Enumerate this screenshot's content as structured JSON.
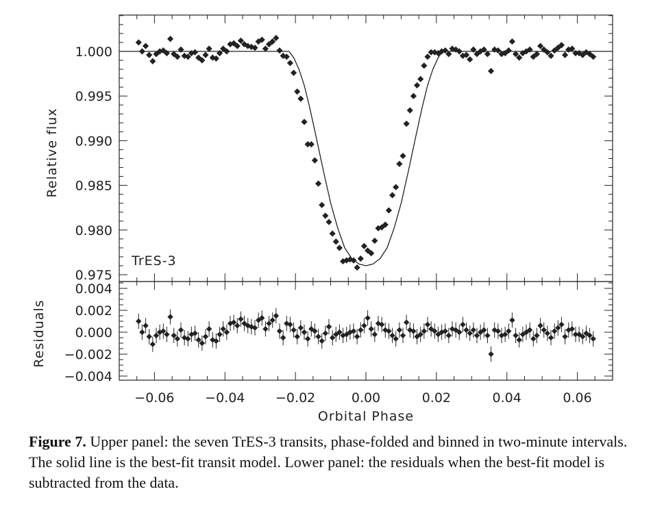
{
  "figure": {
    "caption_label": "Figure 7.",
    "caption_text": " Upper panel: the seven TrES-3 transits, phase-folded and binned in two-minute intervals. The solid line is the best-fit transit model. Lower panel: the residuals when the best-fit model is subtracted from the data."
  },
  "colors": {
    "ink": "#222222",
    "background": "#ffffff"
  },
  "chart_data": [
    {
      "type": "scatter",
      "panel": "upper",
      "annotation": "TrES-3",
      "xlabel": "",
      "ylabel": "Relative flux",
      "xlim": [
        -0.07,
        0.07
      ],
      "ylim": [
        0.975,
        1.0045
      ],
      "x_ticks": [
        -0.06,
        -0.04,
        -0.02,
        0.0,
        0.02,
        0.04,
        0.06
      ],
      "y_ticks": [
        1.0,
        0.995,
        0.99,
        0.985,
        0.98,
        0.975
      ],
      "y_tick_labels": [
        "1.000",
        "0.995",
        "0.990",
        "0.985",
        "0.980",
        "0.975"
      ],
      "model": {
        "type": "line",
        "x": [
          -0.07,
          -0.0218,
          -0.0205,
          -0.019,
          -0.0175,
          -0.016,
          -0.014,
          -0.012,
          -0.01,
          -0.008,
          -0.006,
          -0.004,
          -0.002,
          0.0,
          0.002,
          0.004,
          0.006,
          0.008,
          0.01,
          0.012,
          0.014,
          0.016,
          0.0175,
          0.019,
          0.0205,
          0.0218,
          0.07
        ],
        "y": [
          1.0,
          1.0,
          0.9993,
          0.998,
          0.9962,
          0.9938,
          0.9902,
          0.9865,
          0.983,
          0.9802,
          0.978,
          0.9768,
          0.9762,
          0.976,
          0.9762,
          0.9768,
          0.978,
          0.9802,
          0.983,
          0.9865,
          0.9902,
          0.9938,
          0.9962,
          0.998,
          0.9993,
          1.0,
          1.0
        ]
      },
      "series": [
        {
          "x": [
            -0.0645,
            -0.0635,
            -0.0625,
            -0.0615,
            -0.0605,
            -0.0595,
            -0.0585,
            -0.0575,
            -0.0565,
            -0.0555,
            -0.0545,
            -0.0535,
            -0.0525,
            -0.0515,
            -0.0505,
            -0.0495,
            -0.0485,
            -0.0475,
            -0.0465,
            -0.0455,
            -0.0445,
            -0.0435,
            -0.0425,
            -0.0415,
            -0.0405,
            -0.0395,
            -0.0385,
            -0.0375,
            -0.0365,
            -0.0355,
            -0.0345,
            -0.0335,
            -0.0325,
            -0.0315,
            -0.0305,
            -0.0295,
            -0.0285,
            -0.0275,
            -0.0265,
            -0.0255,
            -0.0245,
            -0.0235,
            -0.0225,
            -0.0215,
            -0.0205,
            -0.0195,
            -0.0185,
            -0.0175,
            -0.0165,
            -0.0155,
            -0.0145,
            -0.0135,
            -0.0125,
            -0.0115,
            -0.0105,
            -0.0095,
            -0.0085,
            -0.0075,
            -0.0065,
            -0.0055,
            -0.0045,
            -0.0035,
            -0.0025,
            -0.0015,
            -0.0005,
            0.0005,
            0.0015,
            0.0025,
            0.0035,
            0.0045,
            0.0055,
            0.0065,
            0.0075,
            0.0085,
            0.0095,
            0.0105,
            0.0115,
            0.0125,
            0.0135,
            0.0145,
            0.0155,
            0.0165,
            0.0175,
            0.0185,
            0.0195,
            0.0205,
            0.0215,
            0.0225,
            0.0235,
            0.0245,
            0.0255,
            0.0265,
            0.0275,
            0.0285,
            0.0295,
            0.0305,
            0.0315,
            0.0325,
            0.0335,
            0.0345,
            0.0355,
            0.0365,
            0.0375,
            0.0385,
            0.0395,
            0.0405,
            0.0415,
            0.0425,
            0.0435,
            0.0445,
            0.0455,
            0.0465,
            0.0475,
            0.0485,
            0.0495,
            0.0505,
            0.0515,
            0.0525,
            0.0535,
            0.0545,
            0.0555,
            0.0565,
            0.0575,
            0.0585,
            0.0595,
            0.0605,
            0.0615,
            0.0625,
            0.0635,
            0.0645
          ],
          "y": [
            1.001,
            1.0,
            1.0006,
            0.9996,
            0.9989,
            0.9997,
            1.0,
            1.0001,
            0.9998,
            1.0014,
            0.9997,
            0.9994,
            1.0002,
            0.9995,
            0.9994,
            0.9998,
            0.9999,
            0.9993,
            0.999,
            0.9996,
            1.0003,
            0.9993,
            0.9992,
            0.9998,
            1.0003,
            1.0,
            1.0008,
            1.0009,
            1.0006,
            1.0012,
            1.0008,
            1.0006,
            1.0005,
            1.0004,
            1.0011,
            1.0013,
            1.0003,
            1.0008,
            1.0011,
            1.0015,
            1.0001,
            0.9995,
            0.9994,
            0.9987,
            0.9976,
            0.9955,
            0.9947,
            0.9921,
            0.9896,
            0.9896,
            0.9878,
            0.9852,
            0.9828,
            0.9816,
            0.9809,
            0.9796,
            0.9787,
            0.978,
            0.9765,
            0.9766,
            0.9767,
            0.9766,
            0.9758,
            0.9768,
            0.9782,
            0.9777,
            0.9774,
            0.9788,
            0.9802,
            0.9803,
            0.9806,
            0.9822,
            0.9839,
            0.9848,
            0.9874,
            0.9883,
            0.9919,
            0.9934,
            0.995,
            0.9962,
            0.9969,
            0.9984,
            0.9994,
            0.9999,
            0.9999,
            0.9998,
            1.0,
            1.0001,
            0.9997,
            1.0003,
            1.0002,
            1.0,
            0.9995,
            0.9996,
            0.9991,
            1.0002,
            0.9997,
            1.0,
            1.0002,
            0.9997,
            0.9978,
            1.0002,
            1.0001,
            0.9997,
            0.9998,
            1.0001,
            1.0011,
            0.9997,
            0.9993,
            0.9998,
            1.0,
            1.0002,
            0.9994,
            0.9997,
            1.0006,
            1.0002,
            0.9999,
            0.9995,
            1.0001,
            1.0004,
            1.0007,
            0.9996,
            1.0002,
            1.0003,
            0.9998,
            0.9998,
            0.9996,
            0.9999,
            0.9997,
            0.9994
          ]
        }
      ]
    },
    {
      "type": "scatter",
      "panel": "lower",
      "xlabel": "Orbital Phase",
      "ylabel": "Residuals",
      "xlim": [
        -0.07,
        0.07
      ],
      "ylim": [
        -0.0045,
        0.0045
      ],
      "x_ticks": [
        -0.06,
        -0.04,
        -0.02,
        0.0,
        0.02,
        0.04,
        0.06
      ],
      "x_tick_labels": [
        "−0.06",
        "−0.04",
        "−0.02",
        "0.00",
        "0.02",
        "0.04",
        "0.06"
      ],
      "y_ticks": [
        0.004,
        0.002,
        0.0,
        -0.002,
        -0.004
      ],
      "y_tick_labels": [
        "0.004",
        "0.002",
        "0.000",
        "−0.002",
        "−0.004"
      ],
      "error_bar": 0.0007,
      "series": [
        {
          "x": [
            -0.0645,
            -0.0635,
            -0.0625,
            -0.0615,
            -0.0605,
            -0.0595,
            -0.0585,
            -0.0575,
            -0.0565,
            -0.0555,
            -0.0545,
            -0.0535,
            -0.0525,
            -0.0515,
            -0.0505,
            -0.0495,
            -0.0485,
            -0.0475,
            -0.0465,
            -0.0455,
            -0.0445,
            -0.0435,
            -0.0425,
            -0.0415,
            -0.0405,
            -0.0395,
            -0.0385,
            -0.0375,
            -0.0365,
            -0.0355,
            -0.0345,
            -0.0335,
            -0.0325,
            -0.0315,
            -0.0305,
            -0.0295,
            -0.0285,
            -0.0275,
            -0.0265,
            -0.0255,
            -0.0245,
            -0.0235,
            -0.0225,
            -0.0215,
            -0.0205,
            -0.0195,
            -0.0185,
            -0.0175,
            -0.0165,
            -0.0155,
            -0.0145,
            -0.0135,
            -0.0125,
            -0.0115,
            -0.0105,
            -0.0095,
            -0.0085,
            -0.0075,
            -0.0065,
            -0.0055,
            -0.0045,
            -0.0035,
            -0.0025,
            -0.0015,
            -0.0005,
            0.0005,
            0.0015,
            0.0025,
            0.0035,
            0.0045,
            0.0055,
            0.0065,
            0.0075,
            0.0085,
            0.0095,
            0.0105,
            0.0115,
            0.0125,
            0.0135,
            0.0145,
            0.0155,
            0.0165,
            0.0175,
            0.0185,
            0.0195,
            0.0205,
            0.0215,
            0.0225,
            0.0235,
            0.0245,
            0.0255,
            0.0265,
            0.0275,
            0.0285,
            0.0295,
            0.0305,
            0.0315,
            0.0325,
            0.0335,
            0.0345,
            0.0355,
            0.0365,
            0.0375,
            0.0385,
            0.0395,
            0.0405,
            0.0415,
            0.0425,
            0.0435,
            0.0445,
            0.0455,
            0.0465,
            0.0475,
            0.0485,
            0.0495,
            0.0505,
            0.0515,
            0.0525,
            0.0535,
            0.0545,
            0.0555,
            0.0565,
            0.0575,
            0.0585,
            0.0595,
            0.0605,
            0.0615,
            0.0625,
            0.0635,
            0.0645
          ],
          "y": [
            0.001,
            0.0,
            0.0006,
            -0.0004,
            -0.0011,
            -0.0003,
            0.0,
            0.0001,
            -0.0002,
            0.0014,
            -0.0003,
            -0.0006,
            0.0002,
            -0.0005,
            -0.0006,
            -0.0002,
            -0.0001,
            -0.0007,
            -0.001,
            -0.0004,
            0.0003,
            -0.0007,
            -0.0008,
            -0.0002,
            0.0003,
            0.0,
            0.0008,
            0.0009,
            0.0006,
            0.0012,
            0.0008,
            0.0006,
            0.0005,
            0.0004,
            0.0011,
            0.0013,
            0.0003,
            0.0008,
            0.0011,
            0.0015,
            0.0001,
            -0.0005,
            0.0008,
            0.0007,
            0.0002,
            -0.0004,
            0.0004,
            0.0,
            -0.0006,
            0.0003,
            0.0001,
            -0.0004,
            -0.0008,
            -0.0001,
            0.0005,
            -0.0005,
            -0.0002,
            0.0,
            -0.0003,
            -0.0002,
            0.0,
            0.0001,
            -0.0004,
            0.0002,
            0.0006,
            0.0013,
            0.0003,
            -0.0002,
            0.0008,
            0.0007,
            0.0002,
            0.0001,
            -0.0003,
            -0.0006,
            0.0002,
            -0.0003,
            0.0009,
            0.0002,
            0.0001,
            -0.0004,
            -0.0002,
            0.0001,
            0.0007,
            0.0003,
            0.0001,
            -0.0002,
            0.0,
            0.0001,
            -0.0003,
            0.0003,
            0.0002,
            0.0,
            0.0007,
            0.0002,
            -0.0001,
            0.0002,
            -0.0003,
            0.0,
            0.0002,
            -0.0003,
            -0.002,
            0.0002,
            0.0001,
            -0.0003,
            -0.0002,
            0.0001,
            0.0011,
            -0.0003,
            -0.0007,
            -0.0002,
            0.0,
            0.0002,
            -0.0006,
            -0.0003,
            0.0006,
            0.0002,
            -0.0001,
            -0.0005,
            0.0001,
            0.0004,
            0.0007,
            -0.0004,
            0.0002,
            0.0003,
            -0.0002,
            -0.0002,
            -0.0004,
            -0.0001,
            -0.0003,
            -0.0006
          ]
        }
      ]
    }
  ]
}
